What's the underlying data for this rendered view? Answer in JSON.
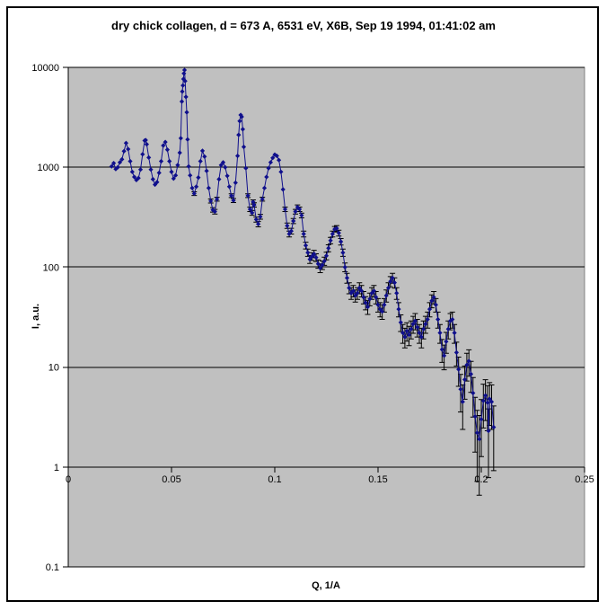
{
  "chart_data": {
    "type": "line",
    "title": "dry chick collagen, d = 673 A, 6531 eV, X6B, Sep 19 1994, 01:41:02 am",
    "xlabel": "Q, 1/A",
    "ylabel": "I, a.u.",
    "xlim": [
      0,
      0.25
    ],
    "ylim_log": [
      0.1,
      10000
    ],
    "y_scale": "log",
    "x_axis_crosses_at": 1,
    "grid": "horizontal lines at each log decade",
    "legend": "none",
    "x_ticks": [
      0,
      0.05,
      0.1,
      0.15,
      0.2,
      0.25
    ],
    "x_tick_labels": [
      "0",
      "0.05",
      "0.1",
      "0.15",
      "0.2",
      "0.25"
    ],
    "y_ticks": [
      10000,
      1000,
      100,
      10,
      1,
      0.1
    ],
    "y_tick_labels": [
      "10000",
      "1000",
      "100",
      "10",
      "1",
      "0.1"
    ],
    "marker": "diamond",
    "series_color": "#0f0f8c",
    "error_bar_color": "#000000",
    "plot_bg": "#c0c0c0",
    "plot_border_color": "#808080",
    "error_model": "symmetric counting-statistics bars of size sqrt(I), visible only at low intensity",
    "points": [
      [
        0.021,
        1020
      ],
      [
        0.022,
        1100
      ],
      [
        0.023,
        960
      ],
      [
        0.024,
        1000
      ],
      [
        0.025,
        1120
      ],
      [
        0.026,
        1200
      ],
      [
        0.027,
        1450
      ],
      [
        0.028,
        1750
      ],
      [
        0.029,
        1520
      ],
      [
        0.03,
        1150
      ],
      [
        0.031,
        900
      ],
      [
        0.032,
        800
      ],
      [
        0.033,
        745
      ],
      [
        0.034,
        780
      ],
      [
        0.035,
        950
      ],
      [
        0.036,
        1350
      ],
      [
        0.037,
        1850
      ],
      [
        0.0375,
        1870
      ],
      [
        0.038,
        1700
      ],
      [
        0.039,
        1250
      ],
      [
        0.04,
        950
      ],
      [
        0.041,
        760
      ],
      [
        0.042,
        670
      ],
      [
        0.043,
        710
      ],
      [
        0.044,
        880
      ],
      [
        0.045,
        1150
      ],
      [
        0.046,
        1650
      ],
      [
        0.047,
        1790
      ],
      [
        0.048,
        1500
      ],
      [
        0.049,
        1150
      ],
      [
        0.05,
        900
      ],
      [
        0.051,
        770
      ],
      [
        0.052,
        830
      ],
      [
        0.053,
        1050
      ],
      [
        0.054,
        1400
      ],
      [
        0.0545,
        1950
      ],
      [
        0.055,
        4550
      ],
      [
        0.0552,
        5730
      ],
      [
        0.0555,
        6600
      ],
      [
        0.0558,
        7640
      ],
      [
        0.056,
        8700
      ],
      [
        0.0563,
        9400
      ],
      [
        0.0566,
        7300
      ],
      [
        0.057,
        5060
      ],
      [
        0.0574,
        3550
      ],
      [
        0.0578,
        1900
      ],
      [
        0.0583,
        1020
      ],
      [
        0.059,
        830
      ],
      [
        0.06,
        620
      ],
      [
        0.061,
        545
      ],
      [
        0.062,
        640
      ],
      [
        0.063,
        790
      ],
      [
        0.064,
        1150
      ],
      [
        0.065,
        1460
      ],
      [
        0.066,
        1280
      ],
      [
        0.067,
        920
      ],
      [
        0.068,
        620
      ],
      [
        0.069,
        460
      ],
      [
        0.07,
        375
      ],
      [
        0.071,
        360
      ],
      [
        0.072,
        480
      ],
      [
        0.073,
        760
      ],
      [
        0.074,
        1050
      ],
      [
        0.075,
        1120
      ],
      [
        0.076,
        1000
      ],
      [
        0.077,
        820
      ],
      [
        0.078,
        640
      ],
      [
        0.079,
        520
      ],
      [
        0.08,
        465
      ],
      [
        0.081,
        700
      ],
      [
        0.082,
        1300
      ],
      [
        0.0825,
        2110
      ],
      [
        0.083,
        2900
      ],
      [
        0.0835,
        3340
      ],
      [
        0.084,
        3200
      ],
      [
        0.0845,
        2400
      ],
      [
        0.085,
        1600
      ],
      [
        0.086,
        980
      ],
      [
        0.087,
        520
      ],
      [
        0.088,
        380
      ],
      [
        0.089,
        350
      ],
      [
        0.0895,
        450
      ],
      [
        0.09,
        420
      ],
      [
        0.091,
        300
      ],
      [
        0.092,
        270
      ],
      [
        0.093,
        320
      ],
      [
        0.094,
        480
      ],
      [
        0.095,
        620
      ],
      [
        0.096,
        800
      ],
      [
        0.097,
        980
      ],
      [
        0.098,
        1120
      ],
      [
        0.099,
        1240
      ],
      [
        0.1,
        1340
      ],
      [
        0.101,
        1300
      ],
      [
        0.102,
        1180
      ],
      [
        0.103,
        900
      ],
      [
        0.104,
        600
      ],
      [
        0.105,
        380
      ],
      [
        0.106,
        260
      ],
      [
        0.107,
        215
      ],
      [
        0.108,
        230
      ],
      [
        0.109,
        290
      ],
      [
        0.11,
        360
      ],
      [
        0.111,
        400
      ],
      [
        0.112,
        380
      ],
      [
        0.113,
        330
      ],
      [
        0.114,
        215
      ],
      [
        0.115,
        165
      ],
      [
        0.116,
        140
      ],
      [
        0.117,
        120
      ],
      [
        0.118,
        128
      ],
      [
        0.119,
        136
      ],
      [
        0.12,
        125
      ],
      [
        0.121,
        108
      ],
      [
        0.122,
        98
      ],
      [
        0.123,
        105
      ],
      [
        0.124,
        115
      ],
      [
        0.125,
        130
      ],
      [
        0.126,
        155
      ],
      [
        0.127,
        185
      ],
      [
        0.128,
        215
      ],
      [
        0.129,
        240
      ],
      [
        0.13,
        245
      ],
      [
        0.131,
        220
      ],
      [
        0.132,
        180
      ],
      [
        0.133,
        140
      ],
      [
        0.134,
        100
      ],
      [
        0.135,
        78
      ],
      [
        0.136,
        62
      ],
      [
        0.137,
        55
      ],
      [
        0.138,
        58
      ],
      [
        0.139,
        52
      ],
      [
        0.14,
        55
      ],
      [
        0.141,
        62
      ],
      [
        0.142,
        58
      ],
      [
        0.143,
        50
      ],
      [
        0.144,
        44
      ],
      [
        0.145,
        40
      ],
      [
        0.146,
        48
      ],
      [
        0.147,
        55
      ],
      [
        0.148,
        58
      ],
      [
        0.149,
        50
      ],
      [
        0.15,
        42
      ],
      [
        0.151,
        38
      ],
      [
        0.152,
        36
      ],
      [
        0.153,
        42
      ],
      [
        0.154,
        52
      ],
      [
        0.155,
        62
      ],
      [
        0.156,
        72
      ],
      [
        0.157,
        78
      ],
      [
        0.158,
        70
      ],
      [
        0.159,
        55
      ],
      [
        0.16,
        38
      ],
      [
        0.161,
        28
      ],
      [
        0.162,
        22
      ],
      [
        0.163,
        20
      ],
      [
        0.164,
        23
      ],
      [
        0.165,
        21
      ],
      [
        0.166,
        24
      ],
      [
        0.167,
        27
      ],
      [
        0.168,
        29
      ],
      [
        0.169,
        25
      ],
      [
        0.17,
        22
      ],
      [
        0.171,
        20
      ],
      [
        0.172,
        24
      ],
      [
        0.173,
        27
      ],
      [
        0.174,
        30
      ],
      [
        0.175,
        38
      ],
      [
        0.176,
        46
      ],
      [
        0.177,
        50
      ],
      [
        0.178,
        42
      ],
      [
        0.179,
        30
      ],
      [
        0.18,
        22
      ],
      [
        0.181,
        15
      ],
      [
        0.182,
        13
      ],
      [
        0.183,
        18
      ],
      [
        0.184,
        24
      ],
      [
        0.185,
        29
      ],
      [
        0.186,
        30
      ],
      [
        0.187,
        22
      ],
      [
        0.188,
        14
      ],
      [
        0.189,
        9.5
      ],
      [
        0.19,
        6.0
      ],
      [
        0.191,
        4.5
      ],
      [
        0.192,
        7.5
      ],
      [
        0.193,
        10.5
      ],
      [
        0.194,
        11.5
      ],
      [
        0.195,
        8.5
      ],
      [
        0.196,
        5.5
      ],
      [
        0.197,
        3.2
      ],
      [
        0.198,
        2.2
      ],
      [
        0.199,
        1.9
      ],
      [
        0.2,
        3.0
      ],
      [
        0.201,
        4.6
      ],
      [
        0.202,
        5.2
      ],
      [
        0.203,
        4.4
      ],
      [
        0.2035,
        2.3
      ],
      [
        0.204,
        4.8
      ],
      [
        0.205,
        4.5
      ],
      [
        0.206,
        2.5
      ]
    ]
  }
}
